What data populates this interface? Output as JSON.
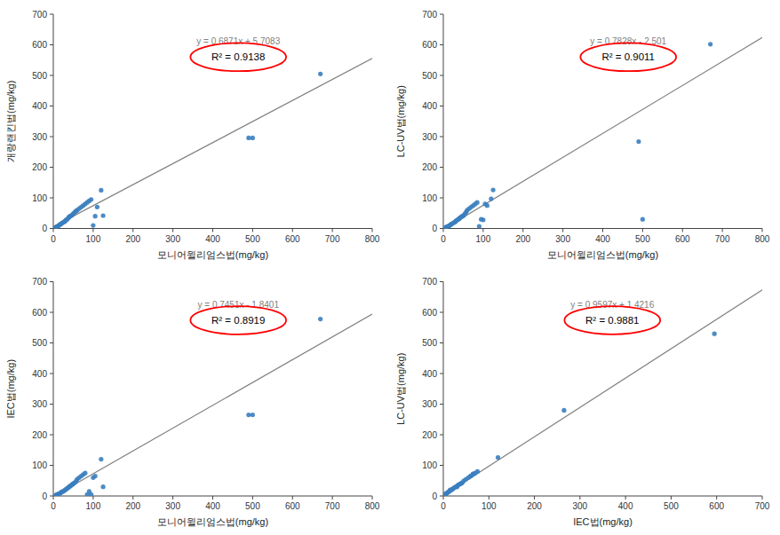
{
  "chart_data": [
    {
      "type": "scatter",
      "x_label": "모니어윌리엄스법(mg/kg)",
      "y_label": "개랑랜킨법(mg/kg)",
      "color": "#3a7ebf",
      "grid": false,
      "x": [
        5,
        8,
        10,
        12,
        14,
        16,
        18,
        20,
        22,
        25,
        28,
        30,
        32,
        35,
        38,
        40,
        42,
        45,
        48,
        50,
        52,
        55,
        58,
        60,
        65,
        70,
        75,
        80,
        85,
        90,
        95,
        100,
        105,
        110,
        120,
        125,
        490,
        500,
        670
      ],
      "values": [
        3,
        5,
        7,
        8,
        10,
        12,
        14,
        15,
        18,
        20,
        22,
        25,
        28,
        30,
        35,
        38,
        40,
        42,
        45,
        48,
        50,
        55,
        58,
        60,
        65,
        70,
        75,
        80,
        85,
        90,
        95,
        10,
        40,
        70,
        125,
        42,
        296,
        296,
        505
      ],
      "trend_line": {
        "slope": 0.6871,
        "intercept": 5.7083,
        "color": "#808080"
      },
      "annotations": [
        {
          "text": "y = 0.6871x + 5.7083",
          "color": "#808080"
        },
        {
          "text": "R² = 0.9138",
          "color": "red"
        }
      ],
      "xlim": [
        0,
        800
      ],
      "ylim": [
        0,
        700
      ],
      "xticks": [
        0,
        100,
        200,
        300,
        400,
        500,
        600,
        700,
        800
      ],
      "yticks": [
        0,
        100,
        200,
        300,
        400,
        500,
        600,
        700
      ]
    },
    {
      "type": "scatter",
      "x_label": "모니어윌리엄스법(mg/kg)",
      "y_label": "LC-UV법(mg/kg)",
      "color": "#3a7ebf",
      "grid": false,
      "x": [
        5,
        8,
        10,
        12,
        14,
        16,
        18,
        20,
        22,
        25,
        28,
        30,
        32,
        35,
        38,
        40,
        42,
        45,
        48,
        50,
        52,
        55,
        58,
        60,
        65,
        70,
        75,
        80,
        85,
        90,
        95,
        100,
        105,
        110,
        120,
        125,
        490,
        500,
        670
      ],
      "values": [
        3,
        5,
        6,
        7,
        8,
        10,
        12,
        14,
        16,
        18,
        20,
        22,
        25,
        28,
        30,
        32,
        35,
        38,
        40,
        42,
        44,
        50,
        55,
        60,
        65,
        70,
        75,
        80,
        85,
        7,
        30,
        28,
        80,
        75,
        97,
        126,
        284,
        30,
        602
      ],
      "trend_line": {
        "slope": 0.7828,
        "intercept": -2.501,
        "color": "#808080"
      },
      "annotations": [
        {
          "text": "y = 0.7828x - 2.501",
          "color": "#808080"
        },
        {
          "text": "R² = 0.9011",
          "color": "red"
        }
      ],
      "xlim": [
        0,
        800
      ],
      "ylim": [
        0,
        700
      ],
      "xticks": [
        0,
        100,
        200,
        300,
        400,
        500,
        600,
        700,
        800
      ],
      "yticks": [
        0,
        100,
        200,
        300,
        400,
        500,
        600,
        700
      ]
    },
    {
      "type": "scatter",
      "x_label": "모니어윌리엄스법(mg/kg)",
      "y_label": "IEC법(mg/kg)",
      "color": "#3a7ebf",
      "grid": false,
      "x": [
        5,
        8,
        10,
        12,
        14,
        16,
        18,
        20,
        22,
        25,
        28,
        30,
        32,
        35,
        38,
        40,
        42,
        45,
        48,
        50,
        52,
        55,
        58,
        60,
        65,
        70,
        75,
        80,
        85,
        90,
        95,
        100,
        105,
        120,
        125,
        490,
        500,
        670
      ],
      "values": [
        2,
        4,
        5,
        6,
        7,
        8,
        10,
        12,
        14,
        15,
        18,
        20,
        22,
        25,
        28,
        30,
        32,
        35,
        38,
        40,
        42,
        45,
        50,
        55,
        60,
        65,
        70,
        75,
        5,
        15,
        5,
        60,
        65,
        120,
        30,
        265,
        265,
        578
      ],
      "trend_line": {
        "slope": 0.7451,
        "intercept": -1.8401,
        "color": "#808080"
      },
      "annotations": [
        {
          "text": "y = 0.7451x - 1.8401",
          "color": "#808080"
        },
        {
          "text": "R² = 0.8919",
          "color": "red"
        }
      ],
      "xlim": [
        0,
        800
      ],
      "ylim": [
        0,
        700
      ],
      "xticks": [
        0,
        100,
        200,
        300,
        400,
        500,
        600,
        700,
        800
      ],
      "yticks": [
        0,
        100,
        200,
        300,
        400,
        500,
        600,
        700
      ]
    },
    {
      "type": "scatter",
      "x_label": "IEC법(mg/kg)",
      "y_label": "LC-UV법(mg/kg)",
      "color": "#3a7ebf",
      "grid": false,
      "x": [
        2,
        4,
        5,
        6,
        7,
        8,
        10,
        12,
        14,
        15,
        18,
        20,
        22,
        25,
        28,
        30,
        32,
        35,
        38,
        40,
        42,
        45,
        50,
        55,
        60,
        65,
        70,
        75,
        5,
        15,
        5,
        60,
        65,
        120,
        30,
        265,
        595
      ],
      "values": [
        3,
        5,
        6,
        7,
        8,
        10,
        12,
        14,
        16,
        18,
        20,
        22,
        25,
        28,
        30,
        32,
        35,
        38,
        40,
        42,
        44,
        50,
        55,
        60,
        65,
        70,
        75,
        80,
        6,
        20,
        6,
        65,
        72,
        126,
        30,
        280,
        530
      ],
      "trend_line": {
        "slope": 0.9597,
        "intercept": 1.4216,
        "color": "#808080"
      },
      "annotations": [
        {
          "text": "y = 0.9597x + 1.4216",
          "color": "#808080"
        },
        {
          "text": "R² = 0.9881",
          "color": "red"
        }
      ],
      "xlim": [
        0,
        700
      ],
      "ylim": [
        0,
        700
      ],
      "xticks": [
        0,
        100,
        200,
        300,
        400,
        500,
        600,
        700
      ],
      "yticks": [
        0,
        100,
        200,
        300,
        400,
        500,
        600,
        700
      ]
    }
  ]
}
